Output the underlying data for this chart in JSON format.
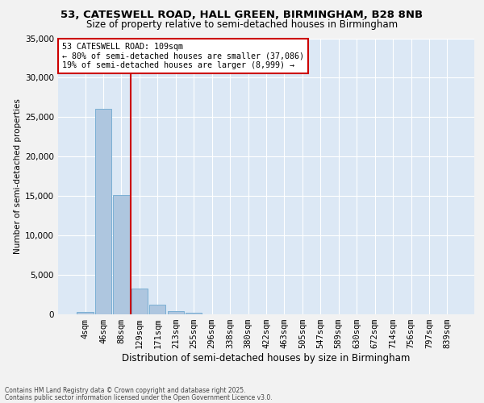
{
  "title_line1": "53, CATESWELL ROAD, HALL GREEN, BIRMINGHAM, B28 8NB",
  "title_line2": "Size of property relative to semi-detached houses in Birmingham",
  "xlabel": "Distribution of semi-detached houses by size in Birmingham",
  "ylabel": "Number of semi-detached properties",
  "bin_labels": [
    "4sqm",
    "46sqm",
    "88sqm",
    "129sqm",
    "171sqm",
    "213sqm",
    "255sqm",
    "296sqm",
    "338sqm",
    "380sqm",
    "422sqm",
    "463sqm",
    "505sqm",
    "547sqm",
    "589sqm",
    "630sqm",
    "672sqm",
    "714sqm",
    "756sqm",
    "797sqm",
    "839sqm"
  ],
  "bin_values": [
    350,
    26100,
    15100,
    3250,
    1200,
    450,
    200,
    0,
    0,
    0,
    0,
    0,
    0,
    0,
    0,
    0,
    0,
    0,
    0,
    0,
    0
  ],
  "bar_color": "#aec6df",
  "bar_edge_color": "#7aafd4",
  "property_size_label": "53 CATESWELL ROAD: 109sqm",
  "pct_smaller": 80,
  "count_smaller": 37086,
  "pct_larger": 19,
  "count_larger": 8999,
  "vline_color": "#cc0000",
  "annotation_box_color": "#cc0000",
  "ylim": [
    0,
    35000
  ],
  "yticks": [
    0,
    5000,
    10000,
    15000,
    20000,
    25000,
    30000,
    35000
  ],
  "background_color": "#dce8f5",
  "plot_bg_color": "#dce8f5",
  "fig_bg_color": "#f2f2f2",
  "grid_color": "#ffffff",
  "footnote_line1": "Contains HM Land Registry data © Crown copyright and database right 2025.",
  "footnote_line2": "Contains public sector information licensed under the Open Government Licence v3.0."
}
